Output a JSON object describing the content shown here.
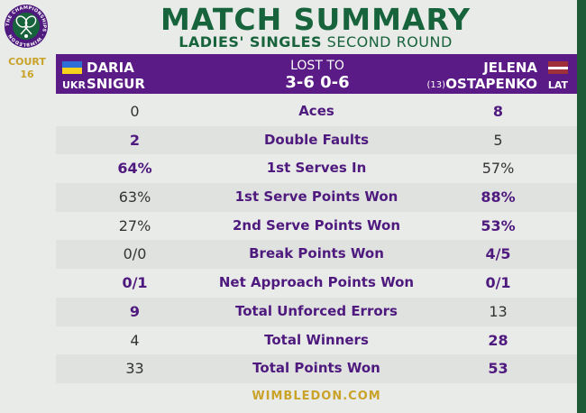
{
  "logo": {
    "ring_text": "THE CHAMPIONSHIPS · WIMBLEDON",
    "icon": "wimbledon-crossed-rackets-logo"
  },
  "court": {
    "line1": "COURT",
    "line2": "16"
  },
  "title": "MATCH SUMMARY",
  "subtitle": {
    "event": "LADIES' SINGLES",
    "round": "SECOND ROUND"
  },
  "player1": {
    "first": "DARIA",
    "last": "SNIGUR",
    "country": "UKR",
    "flag": "ukraine-flag-icon"
  },
  "result": {
    "label": "LOST TO",
    "score": "3-6 0-6"
  },
  "player2": {
    "first": "JELENA",
    "last": "OSTAPENKO",
    "seed": "(13)",
    "country": "LAT",
    "flag": "latvia-flag-icon"
  },
  "stats": [
    {
      "label": "Aces",
      "p1": "0",
      "p2": "8",
      "leader": "p2"
    },
    {
      "label": "Double Faults",
      "p1": "2",
      "p2": "5",
      "leader": "p1"
    },
    {
      "label": "1st Serves In",
      "p1": "64%",
      "p2": "57%",
      "leader": "p1"
    },
    {
      "label": "1st Serve Points Won",
      "p1": "63%",
      "p2": "88%",
      "leader": "p2"
    },
    {
      "label": "2nd Serve Points Won",
      "p1": "27%",
      "p2": "53%",
      "leader": "p2"
    },
    {
      "label": "Break Points Won",
      "p1": "0/0",
      "p2": "4/5",
      "leader": "p2"
    },
    {
      "label": "Net Approach Points Won",
      "p1": "0/1",
      "p2": "0/1",
      "leader": "both"
    },
    {
      "label": "Total Unforced Errors",
      "p1": "9",
      "p2": "13",
      "leader": "p1"
    },
    {
      "label": "Total Winners",
      "p1": "4",
      "p2": "28",
      "leader": "p2"
    },
    {
      "label": "Total Points Won",
      "p1": "33",
      "p2": "53",
      "leader": "p2"
    }
  ],
  "footer": "WIMBLEDON.COM",
  "colors": {
    "green": "#17633b",
    "purple": "#5a1b86",
    "gold": "#c9a229",
    "background": "#e9ebe9"
  }
}
